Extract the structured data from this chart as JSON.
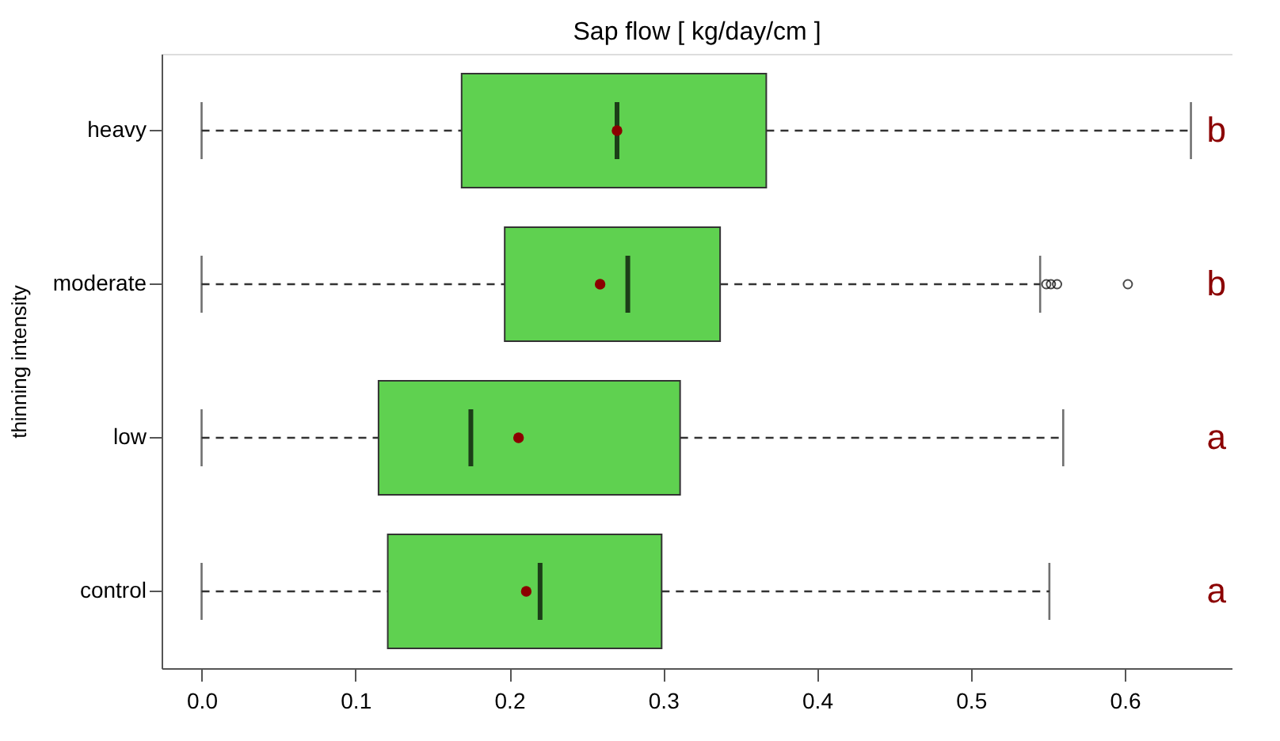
{
  "chart_data": {
    "type": "box",
    "title": "Sap flow [ kg/day/cm ]",
    "ylabel": "thinning intensity",
    "categories": [
      "heavy",
      "moderate",
      "low",
      "control"
    ],
    "orientation": "horizontal",
    "series": [
      {
        "color": "#5fd150",
        "boxes": [
          {
            "low": 0,
            "q1": 0.169,
            "median": 0.27,
            "q3": 0.367,
            "high": 0.643,
            "mean": 0.27
          },
          {
            "low": 0,
            "q1": 0.197,
            "median": 0.277,
            "q3": 0.337,
            "high": 0.545,
            "mean": 0.259,
            "outliers": [
              0.549,
              0.552,
              0.556,
              0.602
            ]
          },
          {
            "low": 0,
            "q1": 0.115,
            "median": 0.175,
            "q3": 0.311,
            "high": 0.56,
            "mean": 0.206
          },
          {
            "low": 0,
            "q1": 0.121,
            "median": 0.22,
            "q3": 0.299,
            "high": 0.551,
            "mean": 0.211
          }
        ]
      }
    ],
    "xlim": [
      -0.026,
      0.67
    ],
    "xticks": [
      {
        "value": 0,
        "label": "0.0"
      },
      {
        "value": 0.1,
        "label": "0.1"
      },
      {
        "value": 0.2,
        "label": "0.2"
      },
      {
        "value": 0.3,
        "label": "0.3"
      },
      {
        "value": 0.4,
        "label": "0.4"
      },
      {
        "value": 0.5,
        "label": "0.5"
      },
      {
        "value": 0.6,
        "label": "0.6"
      }
    ],
    "annotations": [
      "b",
      "b",
      "a",
      "a"
    ],
    "grid": false
  }
}
